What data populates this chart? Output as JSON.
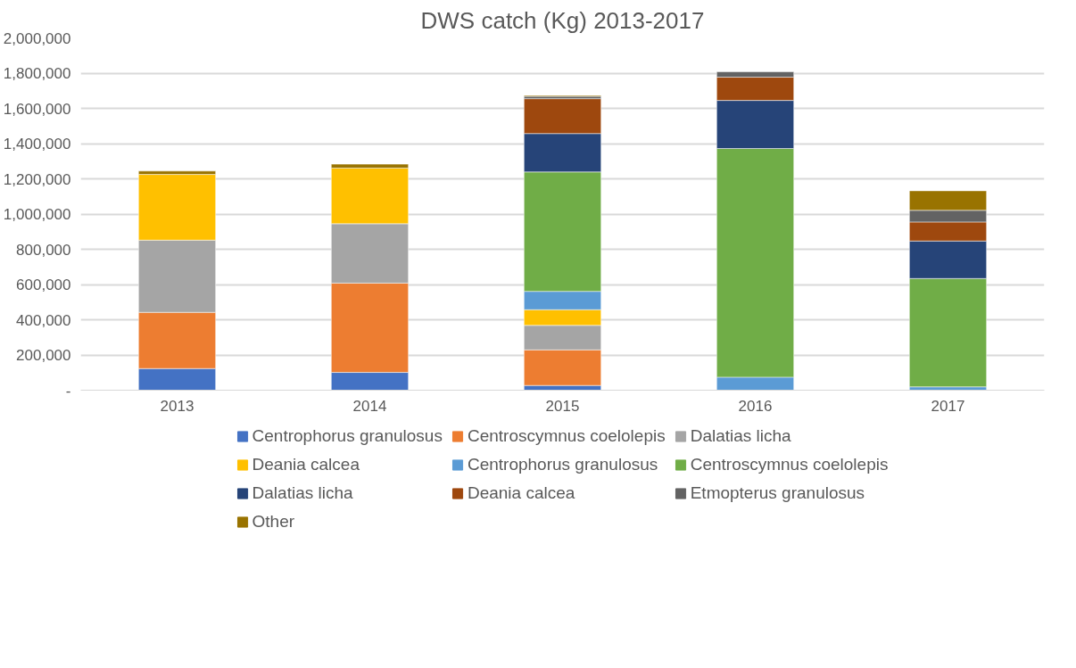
{
  "chart_data": {
    "type": "bar",
    "title": "DWS catch (Kg) 2013-2017",
    "stacked": true,
    "categories": [
      "2013",
      "2014",
      "2015",
      "2016",
      "2017"
    ],
    "series": [
      {
        "name": "Centrophorus granulosus",
        "color": "#4472c4",
        "values": [
          123000,
          101000,
          27000,
          null,
          null
        ]
      },
      {
        "name": "Centroscymnus coelolepis",
        "color": "#ed7d31",
        "values": [
          319000,
          507000,
          202000,
          null,
          null
        ]
      },
      {
        "name": "Dalatias licha",
        "color": "#a5a5a5",
        "values": [
          410000,
          337000,
          139000,
          null,
          null
        ]
      },
      {
        "name": "Deania calcea",
        "color": "#ffc000",
        "values": [
          373000,
          316000,
          89000,
          null,
          null
        ]
      },
      {
        "name": "Centrophorus granulosus",
        "color": "#5b9bd5",
        "values": [
          null,
          null,
          104000,
          74000,
          19000
        ]
      },
      {
        "name": "Centroscymnus coelolepis",
        "color": "#70ad47",
        "values": [
          null,
          null,
          678000,
          1298000,
          615000
        ]
      },
      {
        "name": "Dalatias licha",
        "color": "#264478",
        "values": [
          null,
          null,
          218000,
          273000,
          213000
        ]
      },
      {
        "name": "Deania calcea",
        "color": "#9e480e",
        "values": [
          null,
          null,
          198000,
          132000,
          108000
        ]
      },
      {
        "name": "Etmopterus granulosus",
        "color": "#636363",
        "values": [
          null,
          null,
          13000,
          31000,
          66000
        ]
      },
      {
        "name": "Other",
        "color": "#997300",
        "values": [
          19000,
          22000,
          5000,
          null,
          111000
        ]
      }
    ],
    "ylim": [
      0,
      2000000
    ],
    "yticks": [
      {
        "value": 0,
        "label": "-"
      },
      {
        "value": 200000,
        "label": "200,000"
      },
      {
        "value": 400000,
        "label": "400,000"
      },
      {
        "value": 600000,
        "label": "600,000"
      },
      {
        "value": 800000,
        "label": "800,000"
      },
      {
        "value": 1000000,
        "label": "1,000,000"
      },
      {
        "value": 1200000,
        "label": "1,200,000"
      },
      {
        "value": 1400000,
        "label": "1,400,000"
      },
      {
        "value": 1600000,
        "label": "1,600,000"
      },
      {
        "value": 1800000,
        "label": "1,800,000"
      },
      {
        "value": 2000000,
        "label": "2,000,000"
      }
    ],
    "grid": "y",
    "legend": "bottom"
  }
}
